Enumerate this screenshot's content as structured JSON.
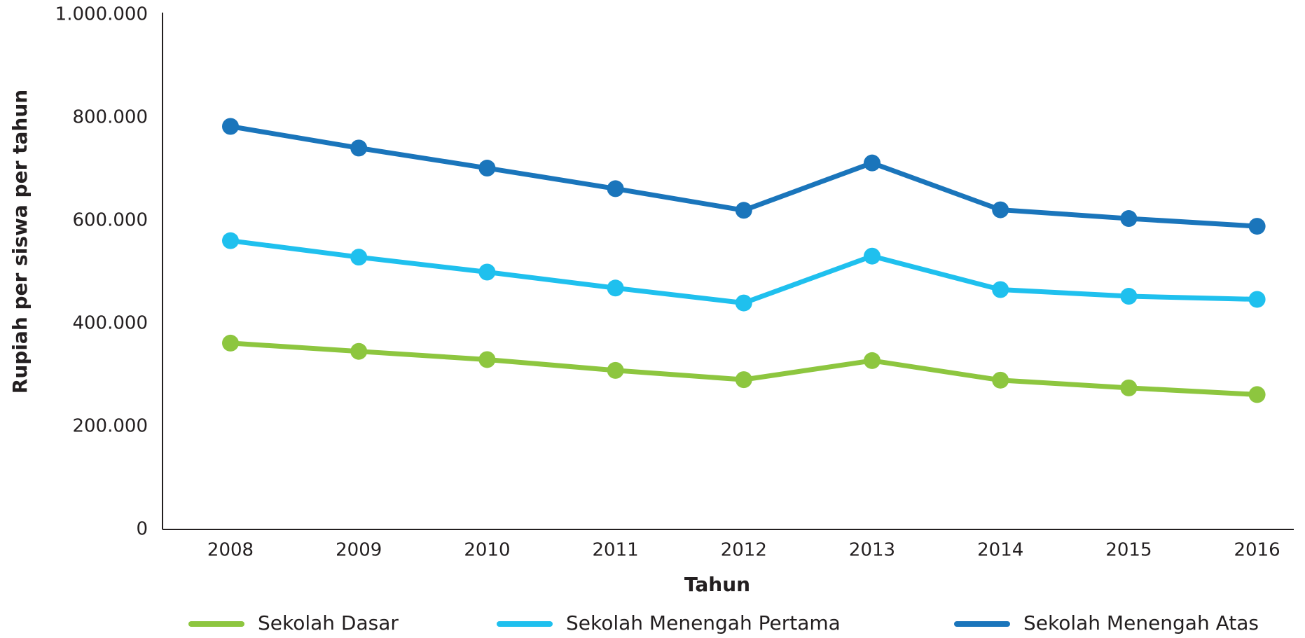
{
  "chart_data": {
    "type": "line",
    "xlabel": "Tahun",
    "ylabel": "Rupiah per siswa per tahun",
    "categories": [
      "2008",
      "2009",
      "2010",
      "2011",
      "2012",
      "2013",
      "2014",
      "2015",
      "2016"
    ],
    "series": [
      {
        "name": "Sekolah Dasar",
        "color": "#8dc63f",
        "values": [
          362000,
          346000,
          330000,
          309000,
          291000,
          328000,
          290000,
          275000,
          262000
        ]
      },
      {
        "name": "Sekolah Menengah Pertama",
        "color": "#1fc0ee",
        "values": [
          561000,
          529000,
          500000,
          469000,
          440000,
          531000,
          466000,
          453000,
          447000
        ]
      },
      {
        "name": "Sekolah Menengah Atas",
        "color": "#1a75bb",
        "values": [
          783000,
          741000,
          702000,
          662000,
          620000,
          712000,
          621000,
          604000,
          589000
        ]
      }
    ],
    "ylim": [
      0,
      1000000
    ],
    "yticks": [
      0,
      {
        "value": 200000,
        "label": "200.000"
      },
      {
        "value": 400000,
        "label": "400.000"
      },
      {
        "value": 600000,
        "label": "600.000"
      },
      {
        "value": 800000,
        "label": "800.000"
      },
      {
        "value": 1000000,
        "label": "1.000.000"
      }
    ],
    "grid": false,
    "legend": "bottom"
  }
}
